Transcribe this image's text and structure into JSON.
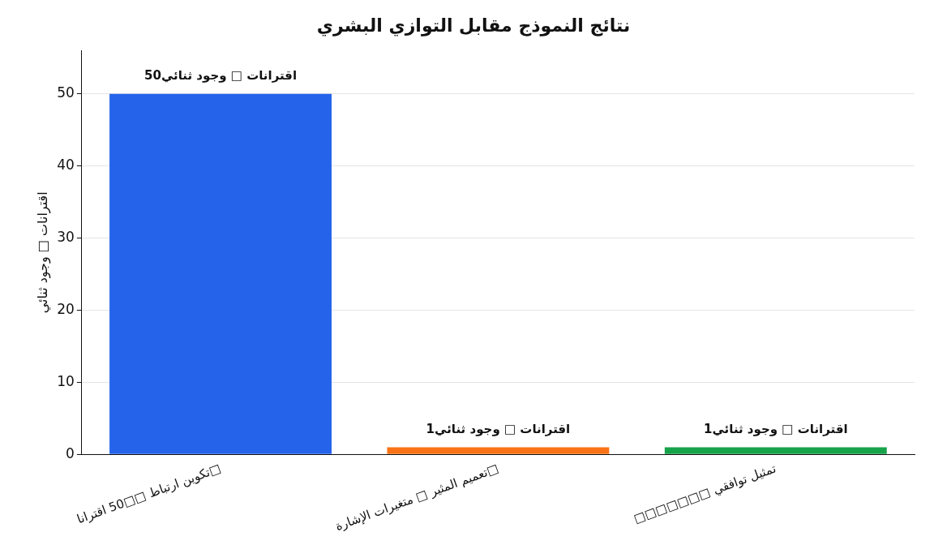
{
  "chart_data": {
    "type": "bar",
    "title": "نتائج النموذج مقابل التوازي البشري",
    "ylabel": "اقترانات □ وجود ثنائي",
    "categories": [
      "تكوين ارتباط □□50 اقترانا□",
      "تعميم المثير □ متغيرات الإشارة□",
      "□□□□□□□ تمثيل توافقي"
    ],
    "values": [
      50,
      1,
      1
    ],
    "colors": [
      "#2563eb",
      "#f97316",
      "#16a34a"
    ],
    "value_labels": [
      "اقترانات □ وجود ثنائي50",
      "اقترانات □ وجود ثنائي1",
      "اقترانات □ وجود ثنائي1"
    ],
    "ylim": [
      0,
      56
    ],
    "yticks": [
      0,
      10,
      20,
      30,
      40,
      50
    ],
    "grid": "y"
  }
}
